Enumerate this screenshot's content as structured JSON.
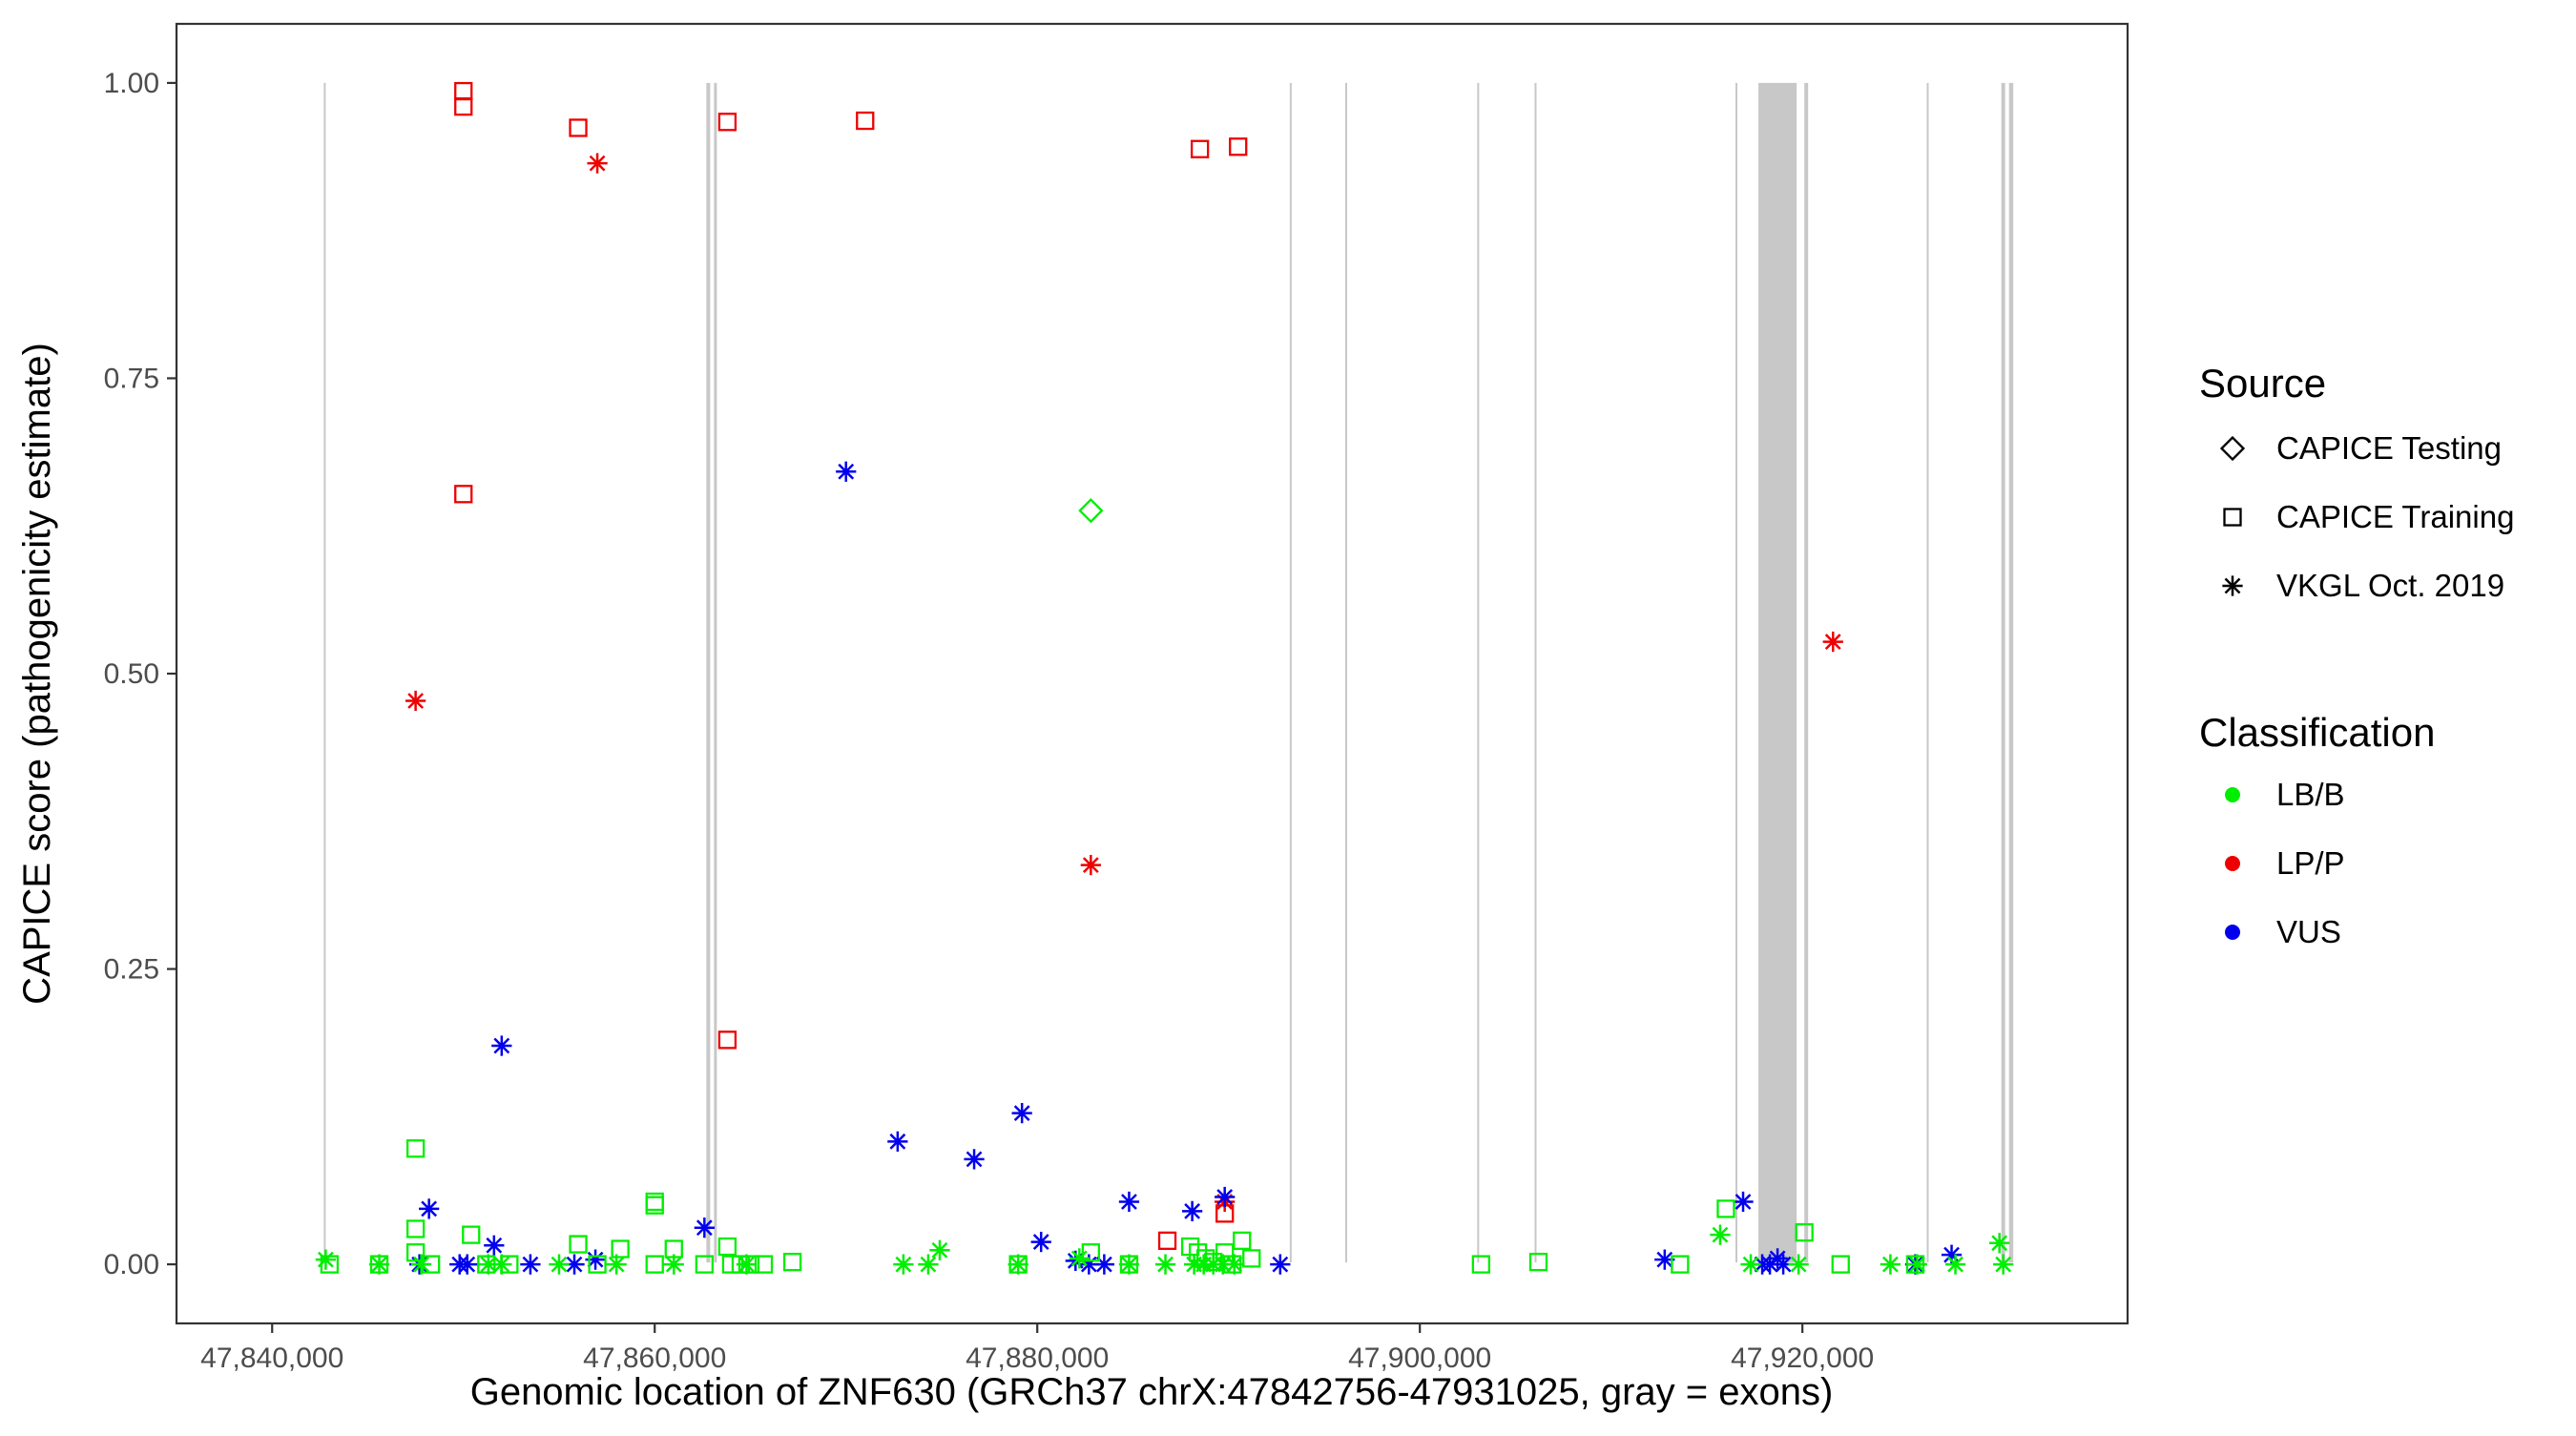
{
  "chart_data": {
    "type": "scatter",
    "title": "",
    "xlabel": "Genomic location of ZNF630 (GRCh37 chrX:47842756-47931025, gray = exons)",
    "ylabel": "CAPICE score (pathogenicity estimate)",
    "xlim": [
      47835000,
      47937000
    ],
    "ylim": [
      -0.05,
      1.05
    ],
    "x_ticks": [
      47840000,
      47860000,
      47880000,
      47900000,
      47920000
    ],
    "x_tick_labels": [
      "47,840,000",
      "47,860,000",
      "47,880,000",
      "47,900,000",
      "47,920,000"
    ],
    "y_ticks": [
      0,
      0.25,
      0.5,
      0.75,
      1.0
    ],
    "y_tick_labels": [
      "0.00",
      "0.25",
      "0.50",
      "0.75",
      "1.00"
    ],
    "grid": false,
    "legend_position": "right",
    "exons": [
      [
        47842700,
        47842800
      ],
      [
        47862700,
        47862900
      ],
      [
        47863100,
        47863250
      ],
      [
        47893200,
        47893300
      ],
      [
        47896100,
        47896200
      ],
      [
        47903000,
        47903100
      ],
      [
        47906000,
        47906100
      ],
      [
        47916500,
        47916600
      ],
      [
        47917700,
        47919700
      ],
      [
        47920100,
        47920300
      ],
      [
        47926500,
        47926600
      ],
      [
        47930400,
        47930600
      ],
      [
        47930800,
        47931025
      ]
    ],
    "legend": {
      "source_title": "Source",
      "source_items": [
        {
          "label": "CAPICE Testing",
          "shape": "diamond"
        },
        {
          "label": "CAPICE Training",
          "shape": "square"
        },
        {
          "label": "VKGL Oct. 2019",
          "shape": "asterisk"
        }
      ],
      "class_title": "Classification",
      "class_items": [
        {
          "label": "LB/B",
          "color": "#00EE00"
        },
        {
          "label": "LP/P",
          "color": "#EE0000"
        },
        {
          "label": "VUS",
          "color": "#0000EE"
        }
      ]
    },
    "series": [
      {
        "source": "CAPICE Training",
        "class": "LP/P",
        "points": [
          [
            47850000,
            0.993
          ],
          [
            47850000,
            0.98
          ],
          [
            47856000,
            0.962
          ],
          [
            47863800,
            0.967
          ],
          [
            47871000,
            0.968
          ],
          [
            47888500,
            0.944
          ],
          [
            47890500,
            0.946
          ],
          [
            47850000,
            0.652
          ],
          [
            47863800,
            0.19
          ],
          [
            47886800,
            0.02
          ],
          [
            47889800,
            0.043
          ]
        ]
      },
      {
        "source": "VKGL Oct. 2019",
        "class": "LP/P",
        "points": [
          [
            47857000,
            0.932
          ],
          [
            47847500,
            0.477
          ],
          [
            47882800,
            0.338
          ],
          [
            47921600,
            0.527
          ],
          [
            47889800,
            0.053
          ]
        ]
      },
      {
        "source": "VKGL Oct. 2019",
        "class": "VUS",
        "points": [
          [
            47870000,
            0.671
          ],
          [
            47852000,
            0.185
          ],
          [
            47879200,
            0.128
          ],
          [
            47872700,
            0.104
          ],
          [
            47876700,
            0.089
          ],
          [
            47884800,
            0.053
          ],
          [
            47888100,
            0.045
          ],
          [
            47889800,
            0.057
          ],
          [
            47848200,
            0.047
          ],
          [
            47862600,
            0.031
          ],
          [
            47851600,
            0.016
          ],
          [
            47880200,
            0.019
          ],
          [
            47916900,
            0.053
          ],
          [
            47927800,
            0.008
          ],
          [
            47918700,
            0.005
          ],
          [
            47912800,
            0.004
          ],
          [
            47847700,
            0.0
          ],
          [
            47849800,
            0.0
          ],
          [
            47850200,
            0.0
          ],
          [
            47853500,
            0.0
          ],
          [
            47855800,
            0.0
          ],
          [
            47856900,
            0.004
          ],
          [
            47882000,
            0.003
          ],
          [
            47882700,
            0.0
          ],
          [
            47883500,
            0.0
          ],
          [
            47892700,
            0.0
          ],
          [
            47917900,
            0.0
          ],
          [
            47918300,
            0.0
          ],
          [
            47919000,
            0.0
          ],
          [
            47925900,
            0.0
          ]
        ]
      },
      {
        "source": "CAPICE Testing",
        "class": "LB/B",
        "points": [
          [
            47882800,
            0.638
          ]
        ]
      },
      {
        "source": "CAPICE Training",
        "class": "LB/B",
        "points": [
          [
            47847500,
            0.098
          ],
          [
            47847500,
            0.03
          ],
          [
            47850400,
            0.025
          ],
          [
            47860000,
            0.053
          ],
          [
            47860000,
            0.05
          ],
          [
            47863800,
            0.015
          ],
          [
            47856000,
            0.017
          ],
          [
            47858200,
            0.013
          ],
          [
            47861000,
            0.013
          ],
          [
            47847500,
            0.01
          ],
          [
            47916000,
            0.047
          ],
          [
            47920100,
            0.027
          ],
          [
            47843000,
            0.0
          ],
          [
            47845600,
            0.0
          ],
          [
            47848300,
            0.0
          ],
          [
            47851200,
            0.0
          ],
          [
            47852400,
            0.0
          ],
          [
            47857000,
            0.0
          ],
          [
            47860000,
            0.0
          ],
          [
            47862600,
            0.0
          ],
          [
            47864000,
            0.0
          ],
          [
            47864500,
            0.0
          ],
          [
            47865000,
            0.0
          ],
          [
            47865700,
            0.0
          ],
          [
            47867200,
            0.002
          ],
          [
            47879000,
            0.0
          ],
          [
            47882800,
            0.01
          ],
          [
            47884800,
            0.0
          ],
          [
            47888000,
            0.015
          ],
          [
            47888400,
            0.01
          ],
          [
            47888800,
            0.005
          ],
          [
            47889200,
            0.002
          ],
          [
            47889800,
            0.01
          ],
          [
            47890200,
            0.0
          ],
          [
            47890700,
            0.02
          ],
          [
            47891200,
            0.005
          ],
          [
            47903200,
            0.0
          ],
          [
            47906200,
            0.002
          ],
          [
            47913600,
            0.0
          ],
          [
            47922000,
            0.0
          ],
          [
            47925900,
            0.0
          ]
        ]
      },
      {
        "source": "VKGL Oct. 2019",
        "class": "LB/B",
        "points": [
          [
            47842800,
            0.004
          ],
          [
            47845600,
            0.0
          ],
          [
            47847800,
            0.0
          ],
          [
            47851300,
            0.0
          ],
          [
            47852000,
            0.0
          ],
          [
            47855000,
            0.0
          ],
          [
            47858000,
            0.0
          ],
          [
            47861000,
            0.0
          ],
          [
            47864800,
            0.0
          ],
          [
            47873000,
            0.0
          ],
          [
            47874300,
            0.0
          ],
          [
            47874900,
            0.012
          ],
          [
            47879000,
            0.0
          ],
          [
            47882200,
            0.005
          ],
          [
            47884800,
            0.0
          ],
          [
            47886700,
            0.0
          ],
          [
            47888200,
            0.0
          ],
          [
            47888700,
            0.0
          ],
          [
            47889200,
            0.0
          ],
          [
            47889700,
            0.0
          ],
          [
            47890300,
            0.0
          ],
          [
            47915700,
            0.025
          ],
          [
            47917300,
            0.0
          ],
          [
            47919800,
            0.0
          ],
          [
            47924600,
            0.0
          ],
          [
            47926000,
            0.0
          ],
          [
            47928000,
            0.0
          ],
          [
            47930300,
            0.018
          ],
          [
            47930500,
            0.0
          ]
        ]
      }
    ]
  }
}
